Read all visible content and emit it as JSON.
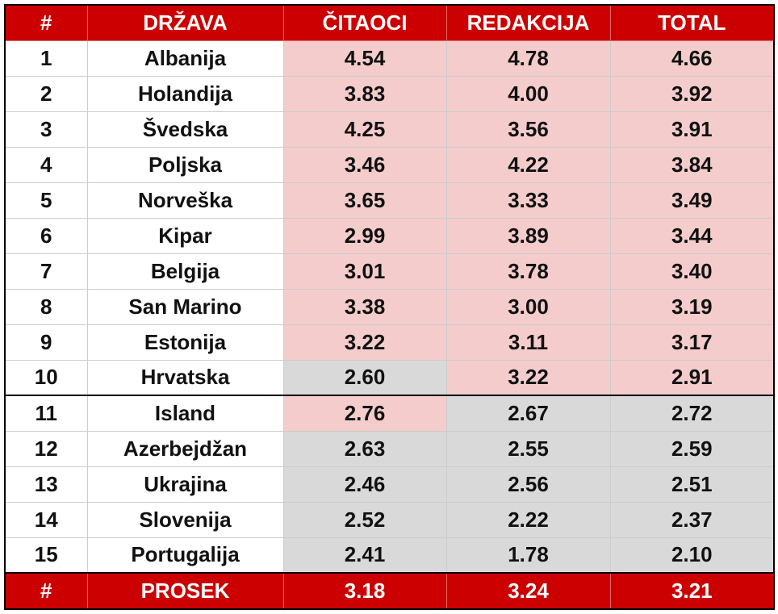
{
  "table": {
    "header": [
      "#",
      "DRŽAVA",
      "ČITAOCI",
      "REDAKCIJA",
      "TOTAL"
    ],
    "rows": [
      [
        "1",
        "Albanija",
        "4.54",
        "4.78",
        "4.66"
      ],
      [
        "2",
        "Holandija",
        "3.83",
        "4.00",
        "3.92"
      ],
      [
        "3",
        "Švedska",
        "4.25",
        "3.56",
        "3.91"
      ],
      [
        "4",
        "Poljska",
        "3.46",
        "4.22",
        "3.84"
      ],
      [
        "5",
        "Norveška",
        "3.65",
        "3.33",
        "3.49"
      ],
      [
        "6",
        "Kipar",
        "2.99",
        "3.89",
        "3.44"
      ],
      [
        "7",
        "Belgija",
        "3.01",
        "3.78",
        "3.40"
      ],
      [
        "8",
        "San Marino",
        "3.38",
        "3.00",
        "3.19"
      ],
      [
        "9",
        "Estonija",
        "3.22",
        "3.11",
        "3.17"
      ],
      [
        "10",
        "Hrvatska",
        "2.60",
        "3.22",
        "2.91"
      ],
      [
        "11",
        "Island",
        "2.76",
        "2.67",
        "2.72"
      ],
      [
        "12",
        "Azerbejdžan",
        "2.63",
        "2.55",
        "2.59"
      ],
      [
        "13",
        "Ukrajina",
        "2.46",
        "2.56",
        "2.51"
      ],
      [
        "14",
        "Slovenija",
        "2.52",
        "2.22",
        "2.37"
      ],
      [
        "15",
        "Portugalija",
        "2.41",
        "1.78",
        "2.10"
      ]
    ],
    "footer": [
      "#",
      "PROSEK",
      "3.18",
      "3.24",
      "3.21"
    ]
  }
}
